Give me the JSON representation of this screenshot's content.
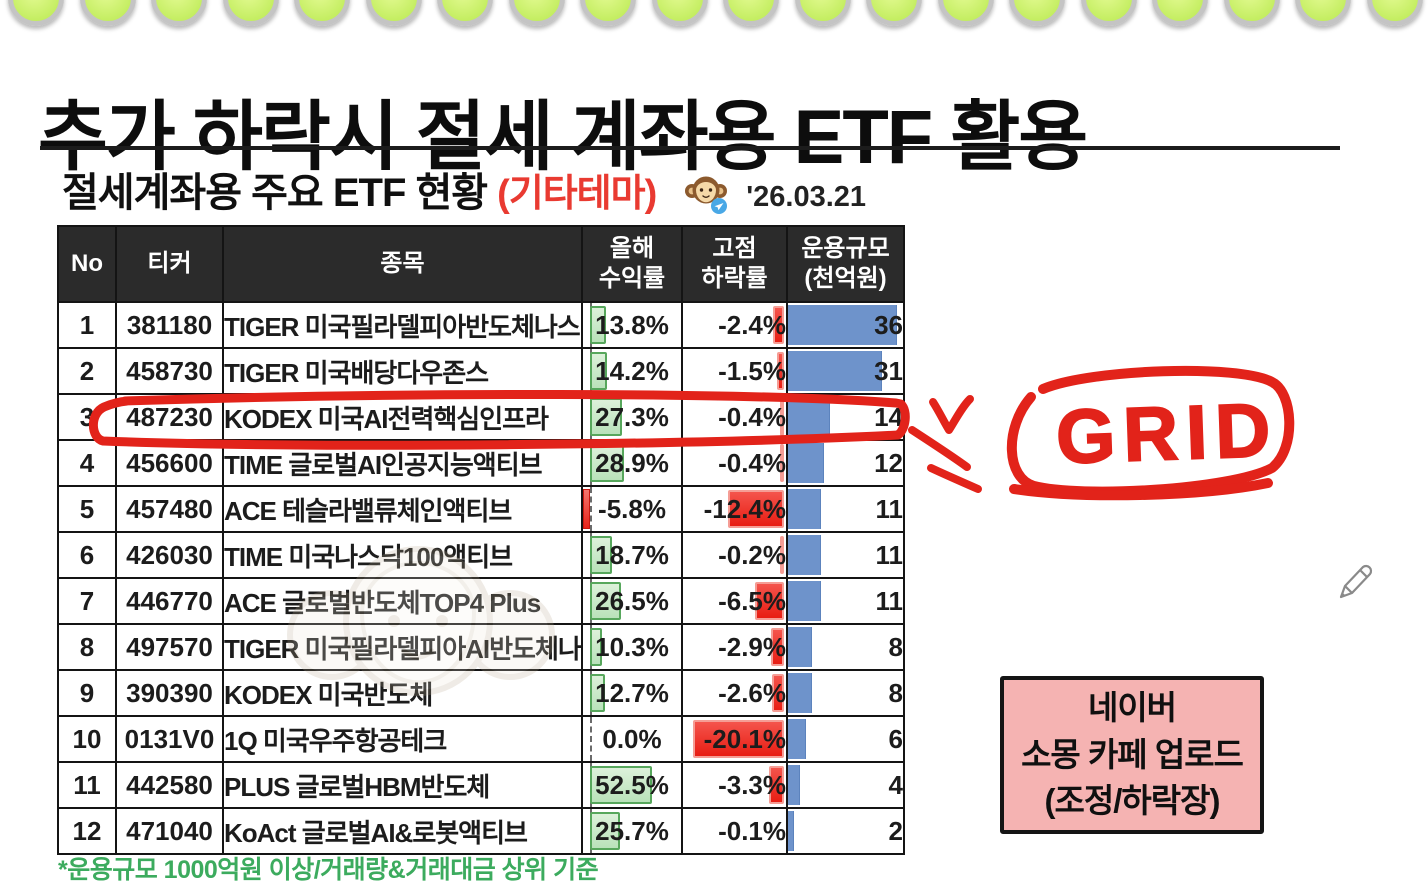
{
  "page": {
    "title": "추가 하락시 절세 계좌용 ETF 활용",
    "subtitle": "절세계좌용 주요 ETF 현황",
    "subtitle_tag": "(기타테마)",
    "date_label": "'26.03.21",
    "footnote": "*운용규모 1000억원 이상/거래량&거래대금 상위 기준"
  },
  "table": {
    "columns": [
      {
        "key": "no",
        "label": "No"
      },
      {
        "key": "ticker",
        "label": "티커"
      },
      {
        "key": "name",
        "label": "종목"
      },
      {
        "key": "ytd",
        "label": "올해\n수익률"
      },
      {
        "key": "drawdown",
        "label": "고점\n하락률"
      },
      {
        "key": "aum",
        "label": "운용규모\n(천억원)"
      }
    ],
    "rows": [
      {
        "no": "1",
        "ticker": "381180",
        "name": "TIGER 미국필라델피아반도체나스닥",
        "ytd": "13.8%",
        "drawdown": "-2.4%",
        "aum": "36"
      },
      {
        "no": "2",
        "ticker": "458730",
        "name": "TIGER 미국배당다우존스",
        "ytd": "14.2%",
        "drawdown": "-1.5%",
        "aum": "31"
      },
      {
        "no": "3",
        "ticker": "487230",
        "name": "KODEX 미국AI전력핵심인프라",
        "ytd": "27.3%",
        "drawdown": "-0.4%",
        "aum": "14"
      },
      {
        "no": "4",
        "ticker": "456600",
        "name": "TIME 글로벌AI인공지능액티브",
        "ytd": "28.9%",
        "drawdown": "-0.4%",
        "aum": "12"
      },
      {
        "no": "5",
        "ticker": "457480",
        "name": "ACE 테슬라밸류체인액티브",
        "ytd": "-5.8%",
        "drawdown": "-12.4%",
        "aum": "11"
      },
      {
        "no": "6",
        "ticker": "426030",
        "name": "TIME 미국나스닥100액티브",
        "ytd": "18.7%",
        "drawdown": "-0.2%",
        "aum": "11"
      },
      {
        "no": "7",
        "ticker": "446770",
        "name": "ACE 글로벌반도체TOP4 Plus",
        "ytd": "26.5%",
        "drawdown": "-6.5%",
        "aum": "11"
      },
      {
        "no": "8",
        "ticker": "497570",
        "name": "TIGER 미국필라델피아AI반도체나스닥",
        "ytd": "10.3%",
        "drawdown": "-2.9%",
        "aum": "8"
      },
      {
        "no": "9",
        "ticker": "390390",
        "name": "KODEX 미국반도체",
        "ytd": "12.7%",
        "drawdown": "-2.6%",
        "aum": "8"
      },
      {
        "no": "10",
        "ticker": "0131V0",
        "name": "1Q 미국우주항공테크",
        "ytd": "0.0%",
        "drawdown": "-20.1%",
        "aum": "6"
      },
      {
        "no": "11",
        "ticker": "442580",
        "name": "PLUS 글로벌HBM반도체",
        "ytd": "52.5%",
        "drawdown": "-3.3%",
        "aum": "4"
      },
      {
        "no": "12",
        "ticker": "471040",
        "name": "KoAct 글로벌AI&로봇액티브",
        "ytd": "25.7%",
        "drawdown": "-0.1%",
        "aum": "2"
      }
    ]
  },
  "annotations": {
    "grid_label": "GRID",
    "highlighted_row_no": "3",
    "note_lines": [
      "네이버",
      "소몽 카페 업로드",
      "(조정/하락장)"
    ]
  },
  "icons": {
    "monkey_mascot": "monkey-face-with-telegram-badge",
    "pencil": "pencil-outline",
    "watermark": "faint-monkey-watermark"
  },
  "colors": {
    "annotation_red": "#e2231a",
    "subtitle_tag_red": "#e93a31",
    "bar_green_fill": "#c9e6c4",
    "bar_green_border": "#57a75c",
    "bar_red": "#e81d13",
    "bar_blue": "#6e93cb",
    "note_pink": "#f5b3b2",
    "footnote_green": "#3cab5e",
    "header_bg": "#2b2b2b"
  }
}
